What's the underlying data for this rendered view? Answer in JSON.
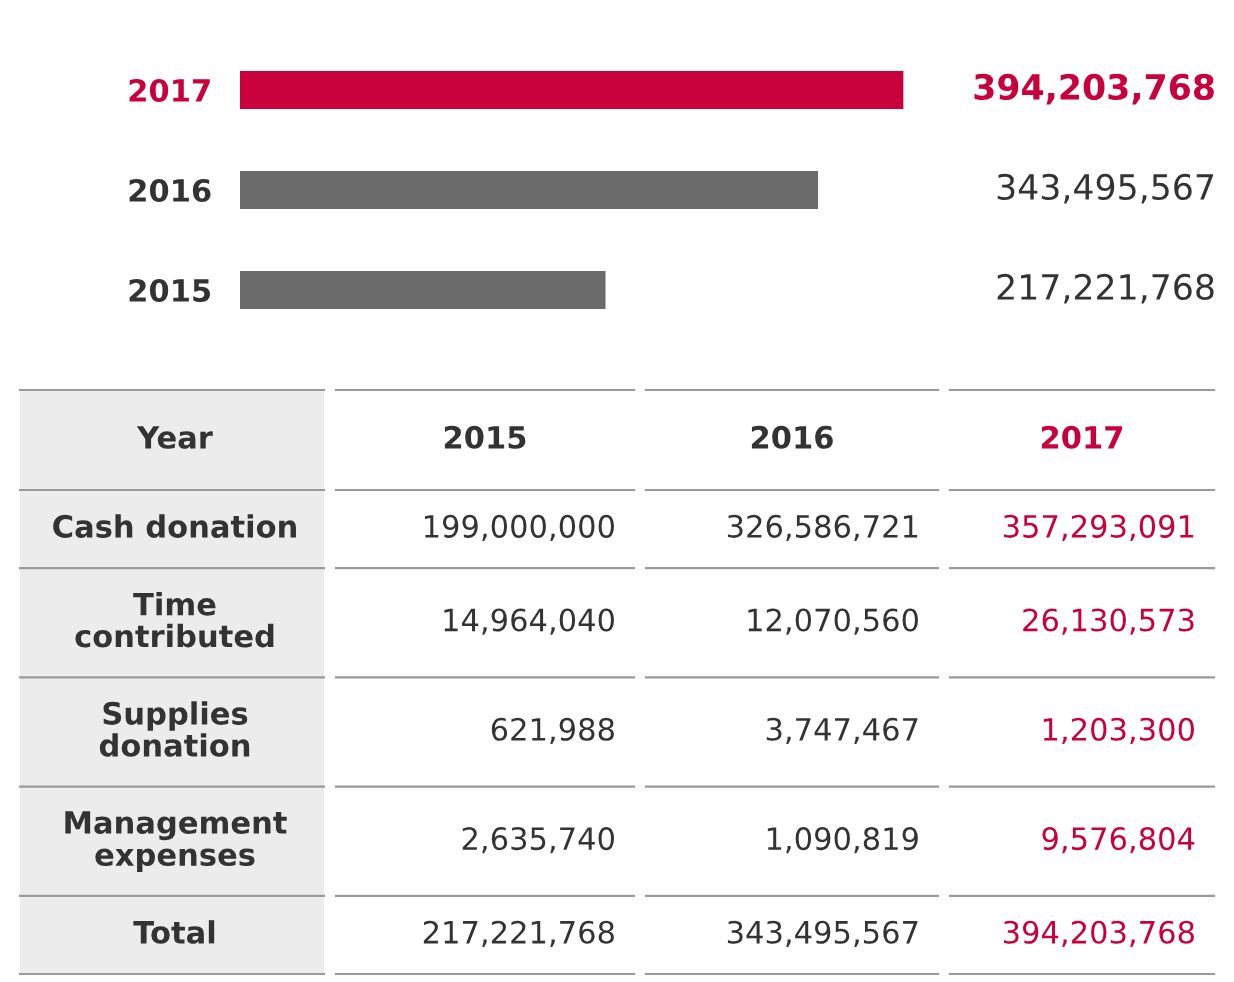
{
  "chart_data": [
    {
      "type": "bar",
      "orientation": "horizontal",
      "categories": [
        "2017",
        "2016",
        "2015"
      ],
      "values": [
        394203768,
        343495567,
        217221768
      ],
      "colors": [
        "#c8003c",
        "#6b6b6b",
        "#6b6b6b"
      ],
      "value_labels": [
        "394,203,768",
        "343,495,567",
        "217,221,768"
      ]
    },
    {
      "type": "other",
      "xlabel": "Year",
      "categories": [
        "2015",
        "2016",
        "2017"
      ],
      "y_categories": [
        "Cash donation",
        "Time contributed",
        "Supplies donation",
        "Management expenses",
        "Total"
      ],
      "cell_labels": [
        [
          "199,000,000",
          "326,586,721",
          "357,293,091"
        ],
        [
          "14,964,040",
          "12,070,560",
          "26,130,573"
        ],
        [
          "621,988",
          "3,747,467",
          "1,203,300"
        ],
        [
          "2,635,740",
          "1,090,819",
          "9,576,804"
        ],
        [
          "217,221,768",
          "343,495,567",
          "394,203,768"
        ]
      ],
      "colors": [
        "#333333",
        "#333333",
        "#c8003c"
      ]
    }
  ]
}
